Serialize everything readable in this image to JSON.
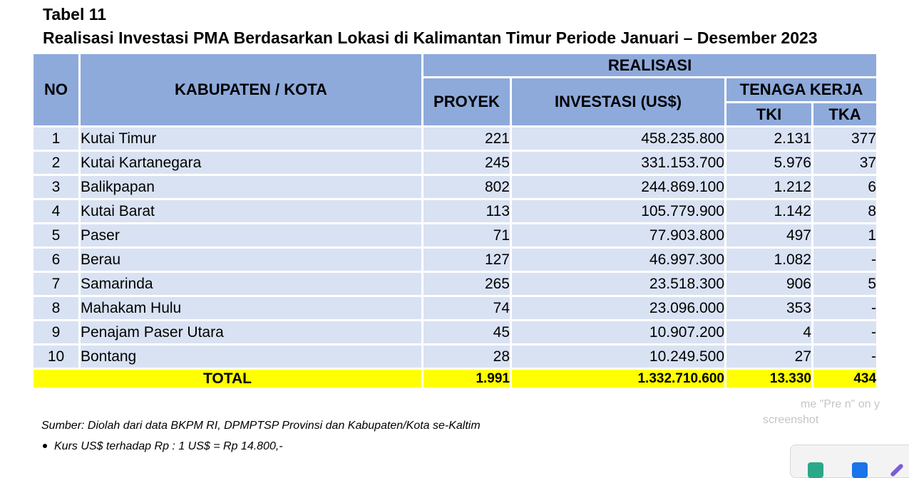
{
  "heading": {
    "label": "Tabel 11",
    "title": "Realisasi Investasi PMA Berdasarkan Lokasi di Kalimantan Timur Periode Januari – Desember 2023"
  },
  "table": {
    "headers": {
      "no": "NO",
      "region": "KABUPATEN / KOTA",
      "realisasi": "REALISASI",
      "proyek": "PROYEK",
      "investasi": "INVESTASI (US$)",
      "tenaga_kerja": "TENAGA KERJA",
      "tki": "TKI",
      "tka": "TKA"
    },
    "rows": [
      {
        "no": "1",
        "name": "Kutai Timur",
        "proyek": "221",
        "investasi": "458.235.800",
        "tki": "2.131",
        "tka": "377"
      },
      {
        "no": "2",
        "name": "Kutai Kartanegara",
        "proyek": "245",
        "investasi": "331.153.700",
        "tki": "5.976",
        "tka": "37"
      },
      {
        "no": "3",
        "name": "Balikpapan",
        "proyek": "802",
        "investasi": "244.869.100",
        "tki": "1.212",
        "tka": "6"
      },
      {
        "no": "4",
        "name": "Kutai Barat",
        "proyek": "113",
        "investasi": "105.779.900",
        "tki": "1.142",
        "tka": "8"
      },
      {
        "no": "5",
        "name": "Paser",
        "proyek": "71",
        "investasi": "77.903.800",
        "tki": "497",
        "tka": "1"
      },
      {
        "no": "6",
        "name": "Berau",
        "proyek": "127",
        "investasi": "46.997.300",
        "tki": "1.082",
        "tka": "-"
      },
      {
        "no": "7",
        "name": "Samarinda",
        "proyek": "265",
        "investasi": "23.518.300",
        "tki": "906",
        "tka": "5"
      },
      {
        "no": "8",
        "name": "Mahakam Hulu",
        "proyek": "74",
        "investasi": "23.096.000",
        "tki": "353",
        "tka": "-"
      },
      {
        "no": "9",
        "name": "Penajam Paser Utara",
        "proyek": "45",
        "investasi": "10.907.200",
        "tki": "4",
        "tka": "-"
      },
      {
        "no": "10",
        "name": "Bontang",
        "proyek": "28",
        "investasi": "10.249.500",
        "tki": "27",
        "tka": "-"
      }
    ],
    "total": {
      "label": "TOTAL",
      "proyek": "1.991",
      "investasi": "1.332.710.600",
      "tki": "13.330",
      "tka": "434"
    }
  },
  "notes": {
    "source": "Sumber: Diolah dari data BKPM RI, DPMPTSP Provinsi dan Kabupaten/Kota se-Kaltim",
    "kurs": "Kurs US$ terhadap Rp : 1 US$ = Rp 14.800,-"
  },
  "overlay": {
    "line1": "me \"Pre      n\" on y",
    "line2": "screenshot"
  },
  "colors": {
    "header_bg": "#8eaadb",
    "row_bg": "#d9e2f3",
    "total_bg": "#ffff00"
  },
  "icons": [
    "bullet-icon",
    "taskbar-app-icon",
    "taskbar-browser-icon",
    "taskbar-pen-icon"
  ]
}
